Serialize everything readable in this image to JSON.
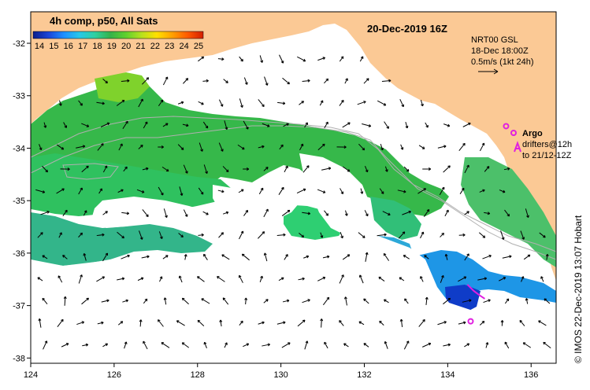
{
  "title": {
    "product": "4h comp, p50, All Sats",
    "date": "20-Dec-2019 16Z"
  },
  "colorbar": {
    "labels": [
      "14",
      "15",
      "16",
      "17",
      "18",
      "19",
      "20",
      "21",
      "22",
      "23",
      "24",
      "25"
    ],
    "colors": [
      "#0a1e8c",
      "#1b45d8",
      "#1e90ff",
      "#27c7e8",
      "#2fd0a0",
      "#34b24a",
      "#5fd02e",
      "#b6e01e",
      "#ffe000",
      "#ffa000",
      "#ff5a00",
      "#d21e00"
    ]
  },
  "currents": {
    "source": "NRT00 GSL",
    "time": "18-Dec 18:00Z",
    "scale_label": "0.5m/s (1kt 24h)"
  },
  "legend": {
    "argo_label": "Argo",
    "drifter_line1": "drifters@12h",
    "drifter_line2": "to 21/12-12Z"
  },
  "credit": "© IMOS 22-Dec-2019 13:07 Hobart",
  "chart_data": {
    "type": "map",
    "x_ticks": [
      "124",
      "126",
      "128",
      "130",
      "132",
      "134",
      "136"
    ],
    "y_ticks": [
      "-32",
      "-33",
      "-34",
      "-35",
      "-36",
      "-37",
      "-38"
    ],
    "lon_range": [
      124,
      136.6
    ],
    "lat_range": [
      -38.1,
      -31.4
    ],
    "land_color": "#fbc995",
    "argo_floats": [
      {
        "lon": 135.4,
        "lat": -33.58
      },
      {
        "lon": 134.55,
        "lat": -37.3
      }
    ],
    "drifters": [
      {
        "lon": 134.7,
        "lat": -36.78
      }
    ]
  }
}
